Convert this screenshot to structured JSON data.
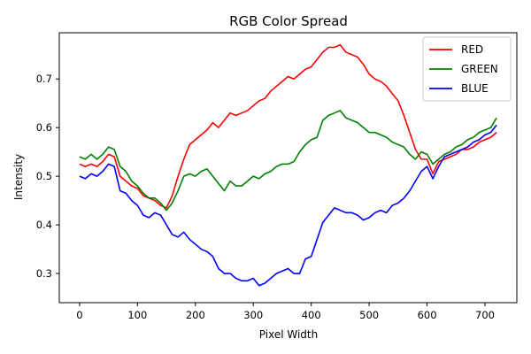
{
  "chart_data": {
    "type": "line",
    "title": "RGB Color Spread",
    "xlabel": "Pixel Width",
    "ylabel": "Intensity",
    "xlim": [
      -35,
      755
    ],
    "ylim": [
      0.24,
      0.795
    ],
    "xticks": [
      0,
      100,
      200,
      300,
      400,
      500,
      600,
      700
    ],
    "yticks": [
      0.3,
      0.4,
      0.5,
      0.6,
      0.7
    ],
    "ytick_labels": [
      "0.3",
      "0.4",
      "0.5",
      "0.6",
      "0.7"
    ],
    "grid": false,
    "legend_position": "top-right",
    "series": [
      {
        "name": "RED",
        "color": "#ff0000",
        "points": [
          [
            0,
            0.525
          ],
          [
            10,
            0.52
          ],
          [
            20,
            0.525
          ],
          [
            30,
            0.52
          ],
          [
            40,
            0.53
          ],
          [
            50,
            0.545
          ],
          [
            60,
            0.54
          ],
          [
            70,
            0.5
          ],
          [
            80,
            0.49
          ],
          [
            90,
            0.48
          ],
          [
            100,
            0.475
          ],
          [
            110,
            0.46
          ],
          [
            120,
            0.455
          ],
          [
            130,
            0.45
          ],
          [
            140,
            0.44
          ],
          [
            150,
            0.435
          ],
          [
            160,
            0.46
          ],
          [
            170,
            0.5
          ],
          [
            180,
            0.535
          ],
          [
            190,
            0.565
          ],
          [
            200,
            0.575
          ],
          [
            210,
            0.585
          ],
          [
            220,
            0.595
          ],
          [
            230,
            0.61
          ],
          [
            240,
            0.6
          ],
          [
            250,
            0.615
          ],
          [
            260,
            0.63
          ],
          [
            270,
            0.625
          ],
          [
            280,
            0.63
          ],
          [
            290,
            0.635
          ],
          [
            300,
            0.645
          ],
          [
            310,
            0.655
          ],
          [
            320,
            0.66
          ],
          [
            330,
            0.675
          ],
          [
            340,
            0.685
          ],
          [
            350,
            0.695
          ],
          [
            360,
            0.705
          ],
          [
            370,
            0.7
          ],
          [
            380,
            0.71
          ],
          [
            390,
            0.72
          ],
          [
            400,
            0.725
          ],
          [
            410,
            0.74
          ],
          [
            420,
            0.755
          ],
          [
            430,
            0.765
          ],
          [
            440,
            0.765
          ],
          [
            450,
            0.77
          ],
          [
            460,
            0.755
          ],
          [
            470,
            0.75
          ],
          [
            480,
            0.745
          ],
          [
            490,
            0.73
          ],
          [
            500,
            0.71
          ],
          [
            510,
            0.7
          ],
          [
            520,
            0.695
          ],
          [
            530,
            0.685
          ],
          [
            540,
            0.67
          ],
          [
            550,
            0.655
          ],
          [
            560,
            0.625
          ],
          [
            570,
            0.59
          ],
          [
            580,
            0.555
          ],
          [
            590,
            0.535
          ],
          [
            600,
            0.535
          ],
          [
            610,
            0.505
          ],
          [
            620,
            0.53
          ],
          [
            630,
            0.535
          ],
          [
            640,
            0.54
          ],
          [
            650,
            0.545
          ],
          [
            660,
            0.555
          ],
          [
            670,
            0.555
          ],
          [
            680,
            0.56
          ],
          [
            690,
            0.57
          ],
          [
            700,
            0.575
          ],
          [
            710,
            0.58
          ],
          [
            720,
            0.59
          ]
        ]
      },
      {
        "name": "GREEN",
        "color": "#008000",
        "points": [
          [
            0,
            0.54
          ],
          [
            10,
            0.535
          ],
          [
            20,
            0.545
          ],
          [
            30,
            0.535
          ],
          [
            40,
            0.545
          ],
          [
            50,
            0.56
          ],
          [
            60,
            0.555
          ],
          [
            70,
            0.52
          ],
          [
            80,
            0.51
          ],
          [
            90,
            0.49
          ],
          [
            100,
            0.48
          ],
          [
            110,
            0.465
          ],
          [
            120,
            0.455
          ],
          [
            130,
            0.455
          ],
          [
            140,
            0.445
          ],
          [
            150,
            0.43
          ],
          [
            160,
            0.445
          ],
          [
            170,
            0.47
          ],
          [
            180,
            0.5
          ],
          [
            190,
            0.505
          ],
          [
            200,
            0.5
          ],
          [
            210,
            0.51
          ],
          [
            220,
            0.515
          ],
          [
            230,
            0.5
          ],
          [
            240,
            0.485
          ],
          [
            250,
            0.47
          ],
          [
            260,
            0.49
          ],
          [
            270,
            0.48
          ],
          [
            280,
            0.48
          ],
          [
            290,
            0.49
          ],
          [
            300,
            0.5
          ],
          [
            310,
            0.495
          ],
          [
            320,
            0.505
          ],
          [
            330,
            0.51
          ],
          [
            340,
            0.52
          ],
          [
            350,
            0.525
          ],
          [
            360,
            0.525
          ],
          [
            370,
            0.53
          ],
          [
            380,
            0.55
          ],
          [
            390,
            0.565
          ],
          [
            400,
            0.575
          ],
          [
            410,
            0.58
          ],
          [
            420,
            0.615
          ],
          [
            430,
            0.625
          ],
          [
            440,
            0.63
          ],
          [
            450,
            0.635
          ],
          [
            460,
            0.62
          ],
          [
            470,
            0.615
          ],
          [
            480,
            0.61
          ],
          [
            490,
            0.6
          ],
          [
            500,
            0.59
          ],
          [
            510,
            0.59
          ],
          [
            520,
            0.585
          ],
          [
            530,
            0.58
          ],
          [
            540,
            0.57
          ],
          [
            550,
            0.565
          ],
          [
            560,
            0.56
          ],
          [
            570,
            0.545
          ],
          [
            580,
            0.535
          ],
          [
            590,
            0.55
          ],
          [
            600,
            0.545
          ],
          [
            610,
            0.525
          ],
          [
            620,
            0.535
          ],
          [
            630,
            0.545
          ],
          [
            640,
            0.55
          ],
          [
            650,
            0.56
          ],
          [
            660,
            0.565
          ],
          [
            670,
            0.575
          ],
          [
            680,
            0.58
          ],
          [
            690,
            0.59
          ],
          [
            700,
            0.595
          ],
          [
            710,
            0.6
          ],
          [
            720,
            0.62
          ]
        ]
      },
      {
        "name": "BLUE",
        "color": "#0000ff",
        "points": [
          [
            0,
            0.5
          ],
          [
            10,
            0.495
          ],
          [
            20,
            0.505
          ],
          [
            30,
            0.5
          ],
          [
            40,
            0.51
          ],
          [
            50,
            0.525
          ],
          [
            60,
            0.52
          ],
          [
            70,
            0.47
          ],
          [
            80,
            0.465
          ],
          [
            90,
            0.45
          ],
          [
            100,
            0.44
          ],
          [
            110,
            0.42
          ],
          [
            120,
            0.415
          ],
          [
            130,
            0.425
          ],
          [
            140,
            0.42
          ],
          [
            150,
            0.4
          ],
          [
            160,
            0.38
          ],
          [
            170,
            0.375
          ],
          [
            180,
            0.385
          ],
          [
            190,
            0.37
          ],
          [
            200,
            0.36
          ],
          [
            210,
            0.35
          ],
          [
            220,
            0.345
          ],
          [
            230,
            0.335
          ],
          [
            240,
            0.31
          ],
          [
            250,
            0.3
          ],
          [
            260,
            0.3
          ],
          [
            270,
            0.29
          ],
          [
            280,
            0.285
          ],
          [
            290,
            0.285
          ],
          [
            300,
            0.29
          ],
          [
            310,
            0.275
          ],
          [
            320,
            0.28
          ],
          [
            330,
            0.29
          ],
          [
            340,
            0.3
          ],
          [
            350,
            0.305
          ],
          [
            360,
            0.31
          ],
          [
            370,
            0.3
          ],
          [
            380,
            0.3
          ],
          [
            390,
            0.33
          ],
          [
            400,
            0.335
          ],
          [
            410,
            0.37
          ],
          [
            420,
            0.405
          ],
          [
            430,
            0.42
          ],
          [
            440,
            0.435
          ],
          [
            450,
            0.43
          ],
          [
            460,
            0.425
          ],
          [
            470,
            0.425
          ],
          [
            480,
            0.42
          ],
          [
            490,
            0.41
          ],
          [
            500,
            0.415
          ],
          [
            510,
            0.425
          ],
          [
            520,
            0.43
          ],
          [
            530,
            0.425
          ],
          [
            540,
            0.44
          ],
          [
            550,
            0.445
          ],
          [
            560,
            0.455
          ],
          [
            570,
            0.47
          ],
          [
            580,
            0.49
          ],
          [
            590,
            0.51
          ],
          [
            600,
            0.52
          ],
          [
            610,
            0.495
          ],
          [
            620,
            0.52
          ],
          [
            630,
            0.54
          ],
          [
            640,
            0.545
          ],
          [
            650,
            0.55
          ],
          [
            660,
            0.555
          ],
          [
            670,
            0.56
          ],
          [
            680,
            0.57
          ],
          [
            690,
            0.575
          ],
          [
            700,
            0.585
          ],
          [
            710,
            0.59
          ],
          [
            720,
            0.605
          ]
        ]
      }
    ]
  }
}
